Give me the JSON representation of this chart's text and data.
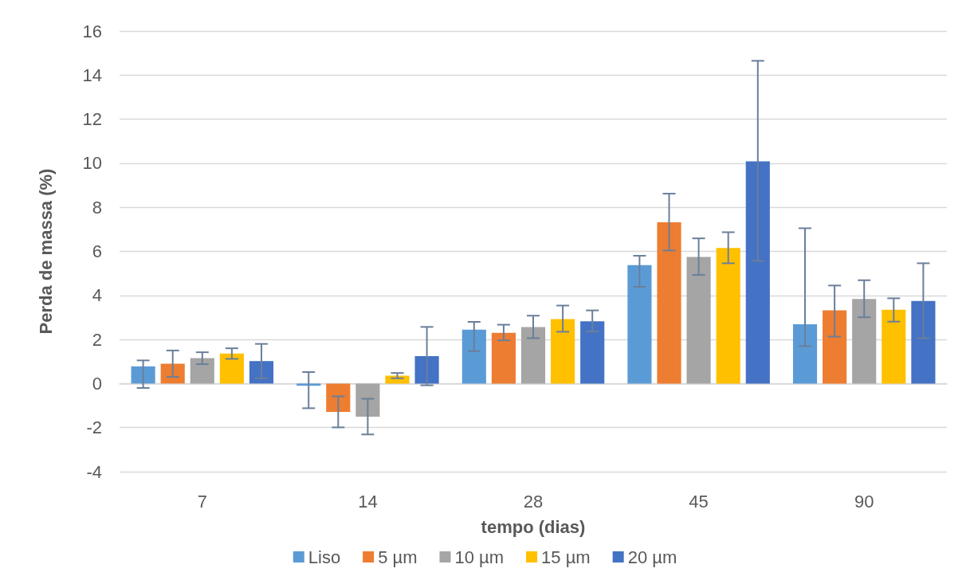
{
  "chart_data": {
    "type": "bar",
    "xlabel": "tempo (dias)",
    "ylabel": "Perda de massa (%)",
    "categories": [
      "7",
      "14",
      "28",
      "45",
      "90"
    ],
    "series": [
      {
        "name": "Liso",
        "color": "#5b9bd5",
        "values": [
          0.78,
          -0.1,
          2.45,
          5.38,
          2.69
        ],
        "errors": [
          [
            -0.2,
            1.05
          ],
          [
            -1.12,
            0.52
          ],
          [
            1.47,
            2.8
          ],
          [
            4.39,
            5.8
          ],
          [
            1.7,
            7.05
          ]
        ]
      },
      {
        "name": "5 µm",
        "color": "#ed7d31",
        "values": [
          0.9,
          -1.29,
          2.3,
          7.32,
          3.32
        ],
        "errors": [
          [
            0.3,
            1.5
          ],
          [
            -1.99,
            -0.58
          ],
          [
            1.96,
            2.67
          ],
          [
            6.04,
            8.62
          ],
          [
            2.13,
            4.45
          ]
        ]
      },
      {
        "name": "10 µm",
        "color": "#a5a5a5",
        "values": [
          1.15,
          -1.5,
          2.56,
          5.75,
          3.84
        ],
        "errors": [
          [
            0.88,
            1.42
          ],
          [
            -2.31,
            -0.69
          ],
          [
            2.06,
            3.08
          ],
          [
            4.93,
            6.59
          ],
          [
            3.01,
            4.69
          ]
        ]
      },
      {
        "name": "15 µm",
        "color": "#ffc000",
        "values": [
          1.36,
          0.36,
          2.93,
          6.15,
          3.35
        ],
        "errors": [
          [
            1.12,
            1.6
          ],
          [
            0.24,
            0.48
          ],
          [
            2.35,
            3.54
          ],
          [
            5.46,
            6.87
          ],
          [
            2.81,
            3.87
          ]
        ]
      },
      {
        "name": "20 µm",
        "color": "#4472c4",
        "values": [
          1.02,
          1.24,
          2.83,
          10.09,
          3.75
        ],
        "errors": [
          [
            0.24,
            1.8
          ],
          [
            -0.08,
            2.57
          ],
          [
            2.36,
            3.32
          ],
          [
            5.57,
            14.65
          ],
          [
            2.06,
            5.46
          ]
        ]
      }
    ],
    "ylim": [
      -4,
      16
    ],
    "yticks": [
      -4,
      -2,
      0,
      2,
      4,
      6,
      8,
      10,
      12,
      14,
      16
    ],
    "grid": "y",
    "legend": "bottom"
  }
}
